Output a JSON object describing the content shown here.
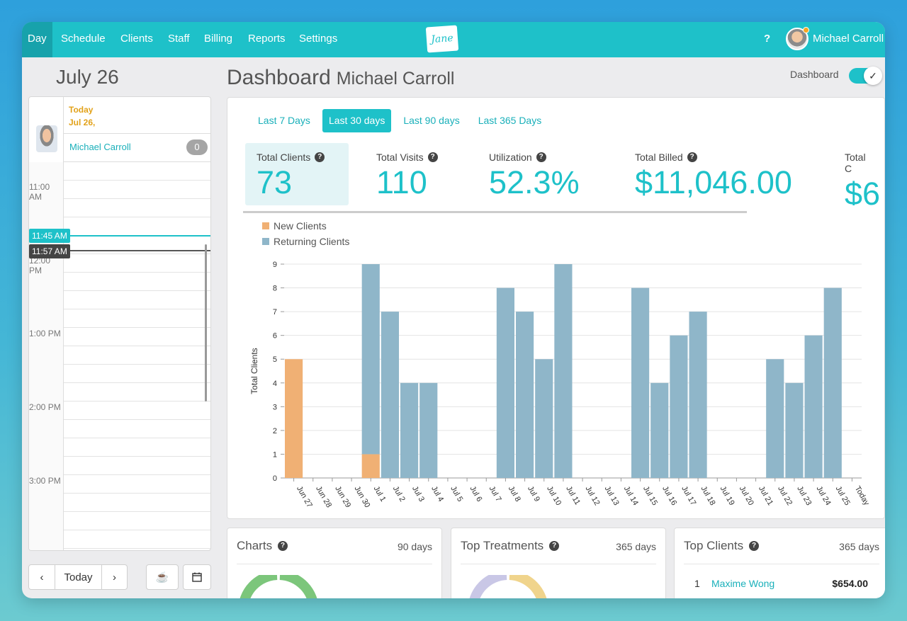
{
  "nav": {
    "items": [
      {
        "label": "Day",
        "active": true
      },
      {
        "label": "Schedule"
      },
      {
        "label": "Clients"
      },
      {
        "label": "Staff"
      },
      {
        "label": "Billing"
      },
      {
        "label": "Reports"
      },
      {
        "label": "Settings"
      }
    ],
    "logo_text": "Jane",
    "help_label": "?",
    "user_name": "Michael Carroll"
  },
  "calendar": {
    "date_title": "July 26",
    "today_label": "Today",
    "today_date": "Jul 26,",
    "provider_name": "Michael Carroll",
    "provider_count": "0",
    "time_labels": [
      "11:00 AM",
      "12:00 PM",
      "1:00 PM",
      "2:00 PM",
      "3:00 PM"
    ],
    "current_time": "11:45 AM",
    "cursor_time": "11:57 AM",
    "today_button": "Today"
  },
  "dashboard": {
    "title": "Dashboard",
    "subtitle": "Michael Carroll",
    "toggle_label": "Dashboard",
    "toggle_on": true,
    "tabs": [
      "Last 7 Days",
      "Last 30 days",
      "Last 90 days",
      "Last 365 Days"
    ],
    "active_tab": "Last 30 days",
    "stats": [
      {
        "label": "Total Clients",
        "value": "73"
      },
      {
        "label": "Total Visits",
        "value": "110"
      },
      {
        "label": "Utilization",
        "value": "52.3%"
      },
      {
        "label": "Total Billed",
        "value": "$11,046.00"
      },
      {
        "label": "Total C",
        "value": "$6"
      }
    ]
  },
  "colors": {
    "accent": "#1ec1c9",
    "new_clients": "#f0b074",
    "returning_clients": "#8fb6c9"
  },
  "chart_data": {
    "type": "bar",
    "stacked": true,
    "ylabel": "Total Clients",
    "ylim": [
      0,
      9
    ],
    "yticks": [
      0,
      1,
      2,
      3,
      4,
      5,
      6,
      7,
      8,
      9
    ],
    "grid": true,
    "legend_position": "top-left",
    "categories": [
      "Jun 27",
      "Jun 28",
      "Jun 29",
      "Jun 30",
      "Jul 1",
      "Jul 2",
      "Jul 3",
      "Jul 4",
      "Jul 5",
      "Jul 6",
      "Jul 7",
      "Jul 8",
      "Jul 9",
      "Jul 10",
      "Jul 11",
      "Jul 12",
      "Jul 13",
      "Jul 14",
      "Jul 15",
      "Jul 16",
      "Jul 17",
      "Jul 18",
      "Jul 19",
      "Jul 20",
      "Jul 21",
      "Jul 22",
      "Jul 23",
      "Jul 24",
      "Jul 25",
      "Today"
    ],
    "series": [
      {
        "name": "New Clients",
        "values": [
          5,
          0,
          0,
          0,
          1,
          0,
          0,
          0,
          0,
          0,
          0,
          0,
          0,
          0,
          0,
          0,
          0,
          0,
          0,
          0,
          0,
          0,
          0,
          0,
          0,
          0,
          0,
          0,
          0,
          0
        ]
      },
      {
        "name": "Returning Clients",
        "values": [
          0,
          0,
          0,
          0,
          8,
          7,
          4,
          4,
          0,
          0,
          0,
          8,
          7,
          5,
          9,
          0,
          0,
          0,
          8,
          4,
          6,
          7,
          0,
          0,
          0,
          5,
          4,
          6,
          8,
          0
        ]
      }
    ]
  },
  "bottom_cards": [
    {
      "title": "Charts",
      "range": "90 days"
    },
    {
      "title": "Top Treatments",
      "range": "365 days"
    },
    {
      "title": "Top Clients",
      "range": "365 days"
    }
  ],
  "top_clients": [
    {
      "rank": "1",
      "name": "Maxime Wong",
      "amount": "$654.00"
    }
  ]
}
